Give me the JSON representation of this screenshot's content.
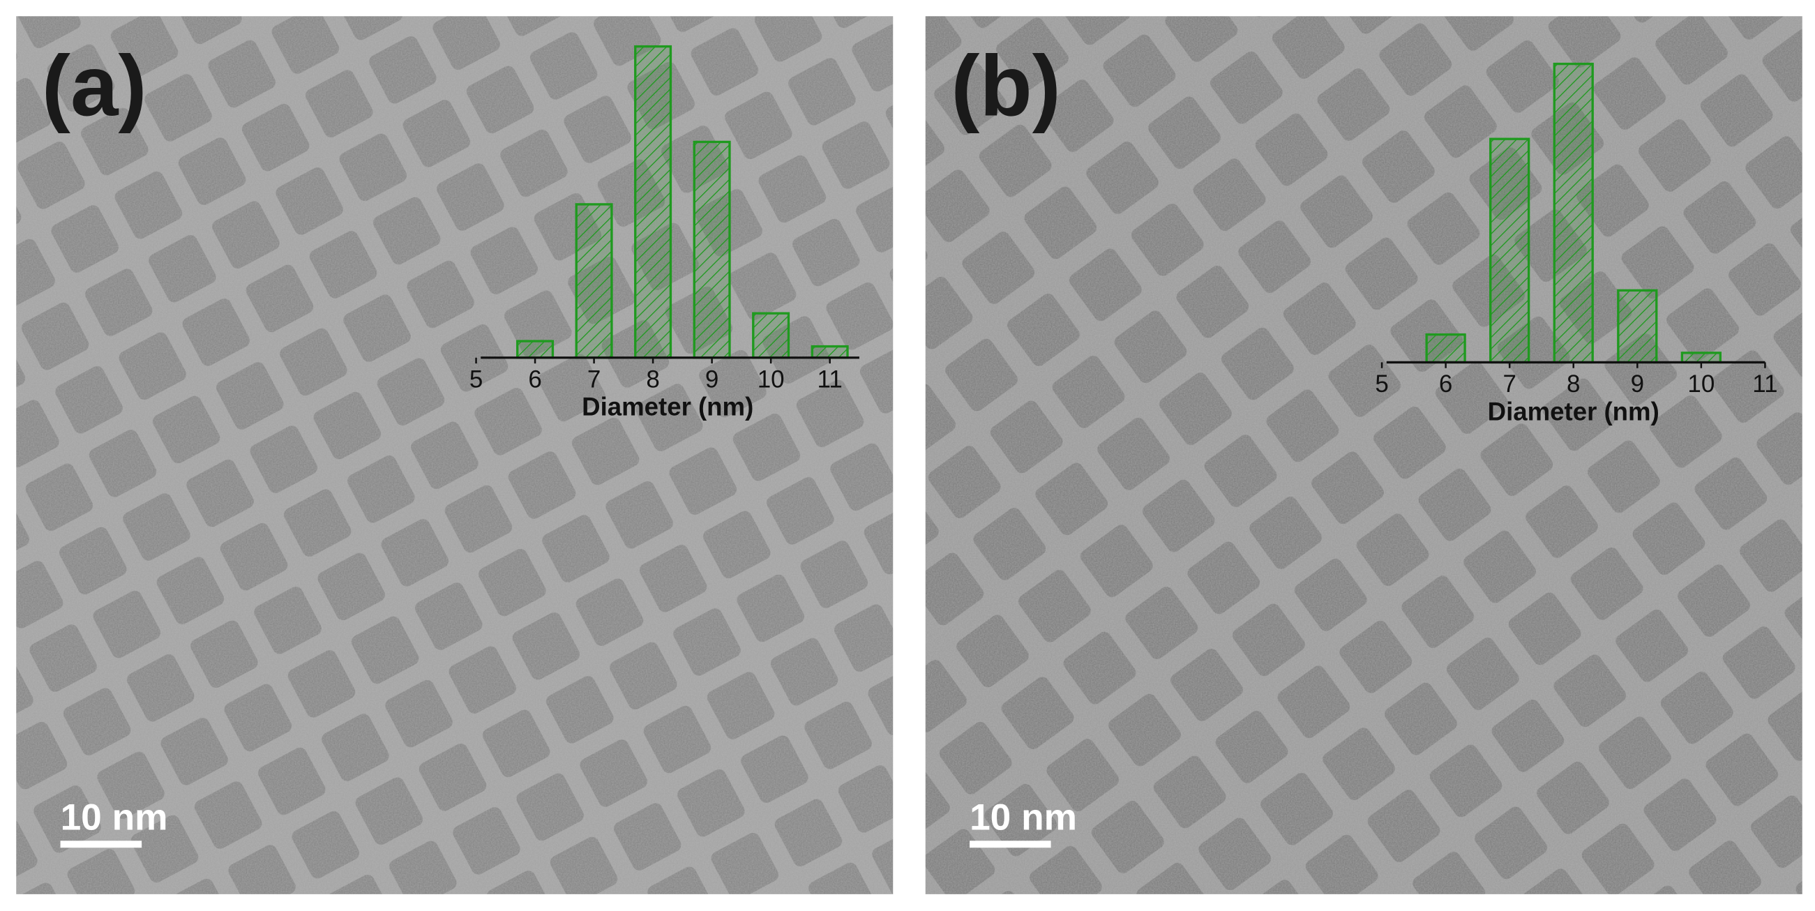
{
  "chart_data": [
    {
      "type": "bar",
      "panel_label": "(a)",
      "x": [
        6,
        7,
        8,
        9,
        10,
        11
      ],
      "values": [
        2.2,
        20.4,
        41.4,
        28.7,
        5.9,
        1.5
      ],
      "xlim": [
        5,
        11.5
      ],
      "xticks": [
        5,
        6,
        7,
        8,
        9,
        10,
        11
      ],
      "xlabel": "Diameter (nm)",
      "color": "#1f9a1f",
      "scale_bar": "10 nm"
    },
    {
      "type": "bar",
      "panel_label": "(b)",
      "x": [
        6,
        7,
        8,
        9,
        10
      ],
      "values": [
        4.4,
        35.4,
        47.3,
        11.4,
        1.5
      ],
      "xlim": [
        5,
        11
      ],
      "xticks": [
        5,
        6,
        7,
        8,
        9,
        10,
        11
      ],
      "xlabel": "Diameter (nm)",
      "color": "#1f9a1f",
      "scale_bar": "10 nm"
    }
  ]
}
